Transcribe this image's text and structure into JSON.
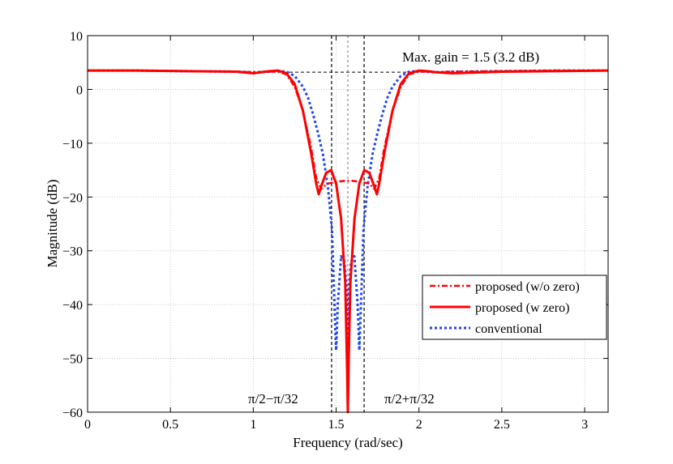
{
  "chart_data": {
    "type": "line",
    "title": "",
    "xlabel": "Frequency (rad/sec)",
    "ylabel": "Magnitude (dB)",
    "xlim": [
      0,
      3.1416
    ],
    "ylim": [
      -60,
      10
    ],
    "grid": true,
    "x_ticks": [
      0,
      0.5,
      1,
      1.5,
      2,
      2.5,
      3
    ],
    "x_tick_labels": [
      "0",
      "0.5",
      "1",
      "1.5",
      "2",
      "2.5",
      "3"
    ],
    "y_ticks": [
      10,
      0,
      -10,
      -20,
      -30,
      -40,
      -50,
      -60
    ],
    "y_tick_labels": [
      "10",
      "0",
      "−10",
      "−20",
      "−30",
      "−40",
      "−50",
      "−60"
    ],
    "legend_position": "lower-right",
    "series": [
      {
        "name": "proposed (w/o zero)",
        "color": "#ff0000",
        "style": "dash-dot",
        "x": [
          0,
          0.3,
          0.6,
          0.9,
          1.0,
          1.1,
          1.15,
          1.2,
          1.25,
          1.3,
          1.35,
          1.38,
          1.41,
          1.45,
          1.5,
          1.55,
          1.5708,
          1.6,
          1.65,
          1.7,
          1.73,
          1.76,
          1.79,
          1.84,
          1.89,
          1.94,
          2.0,
          2.05,
          2.1,
          2.2,
          2.5,
          2.8,
          3.1416
        ],
        "y": [
          3.5,
          3.5,
          3.4,
          3.3,
          3.2,
          3.3,
          3.3,
          2.8,
          0.5,
          -4.0,
          -11.0,
          -16.5,
          -18.5,
          -17.5,
          -17.2,
          -17.0,
          -17.0,
          -17.0,
          -17.2,
          -17.5,
          -18.5,
          -16.5,
          -11.0,
          -4.0,
          0.5,
          2.8,
          3.3,
          3.3,
          3.2,
          3.3,
          3.4,
          3.5,
          3.5
        ]
      },
      {
        "name": "proposed (w zero)",
        "color": "#ff0000",
        "style": "solid",
        "x": [
          0,
          0.3,
          0.6,
          0.9,
          1.0,
          1.05,
          1.1,
          1.15,
          1.2,
          1.25,
          1.3,
          1.35,
          1.38,
          1.395,
          1.41,
          1.44,
          1.47,
          1.5,
          1.53,
          1.555,
          1.565,
          1.5708,
          1.576,
          1.586,
          1.611,
          1.64,
          1.67,
          1.7,
          1.73,
          1.746,
          1.76,
          1.79,
          1.84,
          1.89,
          1.94,
          2.0,
          2.05,
          2.1,
          2.2,
          2.5,
          2.8,
          3.1416
        ],
        "y": [
          3.5,
          3.5,
          3.4,
          3.3,
          3.0,
          3.2,
          3.4,
          3.5,
          3.0,
          1.0,
          -4.0,
          -12.0,
          -17.5,
          -19.5,
          -18.0,
          -15.5,
          -15.0,
          -17.5,
          -24.0,
          -36.0,
          -50.0,
          -60.0,
          -50.0,
          -36.0,
          -24.0,
          -17.5,
          -15.0,
          -15.5,
          -18.0,
          -19.5,
          -17.5,
          -12.0,
          -4.0,
          1.0,
          3.0,
          3.5,
          3.4,
          3.2,
          3.0,
          3.3,
          3.4,
          3.5
        ]
      },
      {
        "name": "conventional",
        "color": "#1f45f0",
        "style": "dotted",
        "x": [
          0,
          0.3,
          0.6,
          0.9,
          1.0,
          1.1,
          1.15,
          1.2,
          1.25,
          1.3,
          1.33,
          1.36,
          1.39,
          1.42,
          1.45,
          1.475,
          1.49,
          1.5,
          1.51,
          1.53,
          1.55,
          1.565,
          1.5708,
          1.576,
          1.59,
          1.61,
          1.63,
          1.64,
          1.65,
          1.665,
          1.69,
          1.72,
          1.75,
          1.78,
          1.81,
          1.84,
          1.89,
          1.94,
          1.99,
          2.04,
          2.1,
          2.2,
          2.5,
          2.8,
          3.1416
        ],
        "y": [
          3.5,
          3.5,
          3.4,
          3.3,
          3.2,
          3.3,
          3.4,
          3.3,
          2.5,
          0.5,
          -1.5,
          -4.5,
          -8.0,
          -12.0,
          -18.0,
          -26.0,
          -40.0,
          -48.5,
          -40.0,
          -31.0,
          -32.0,
          -38.0,
          -58.0,
          -38.0,
          -32.0,
          -31.0,
          -40.0,
          -48.5,
          -40.0,
          -26.0,
          -18.0,
          -12.0,
          -8.0,
          -4.5,
          -1.5,
          0.5,
          2.5,
          3.3,
          3.4,
          3.3,
          3.2,
          3.3,
          3.4,
          3.5,
          3.5
        ]
      }
    ],
    "reference_lines": {
      "max_gain_db": 3.2,
      "max_gain_x_range": [
        1.15,
        2.0
      ],
      "center_x": 1.5708,
      "band_edges_x": [
        1.4726,
        1.669
      ]
    },
    "annotations": {
      "max_gain": "Max. gain = 1.5 (3.2 dB)",
      "left_edge": "π/2−π/32",
      "right_edge": "π/2+π/32"
    }
  }
}
